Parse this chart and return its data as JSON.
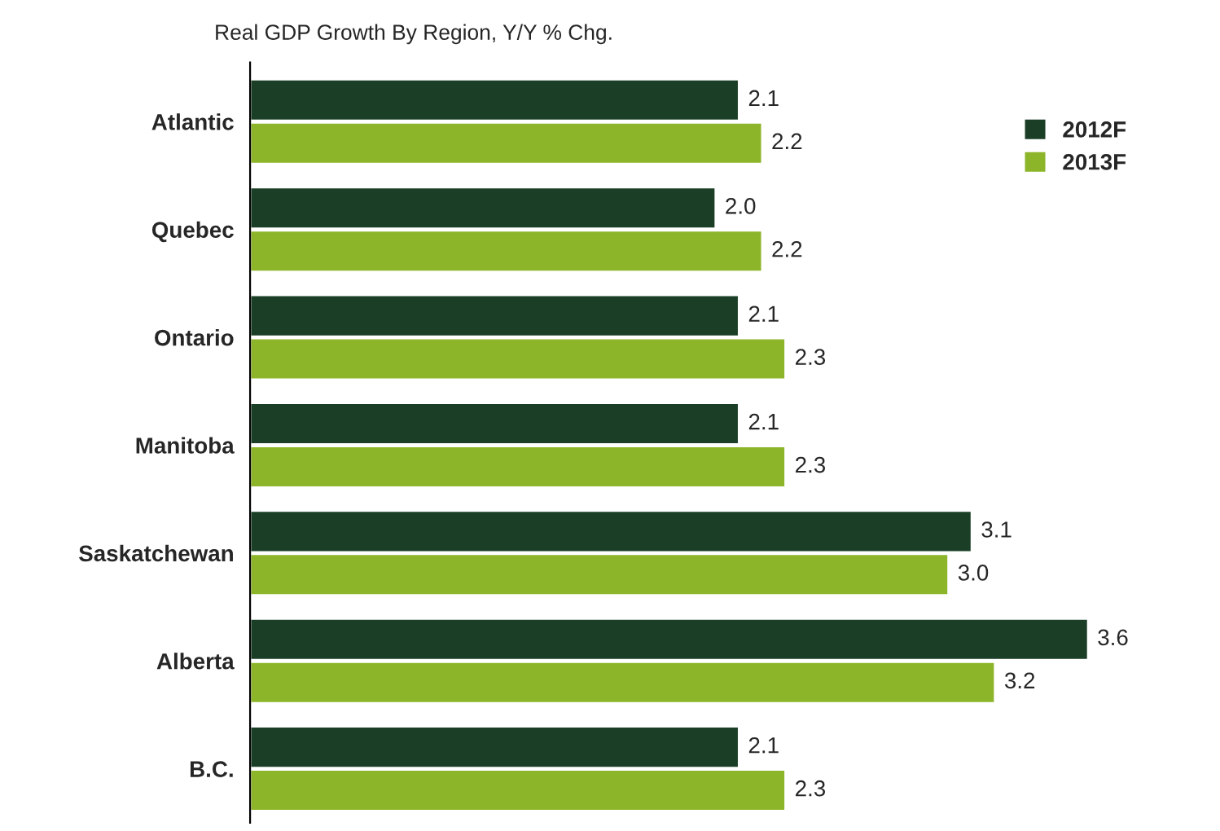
{
  "chart_data": {
    "type": "bar",
    "orientation": "horizontal",
    "title": "Real GDP Growth By Region, Y/Y % Chg.",
    "categories": [
      "Atlantic",
      "Quebec",
      "Ontario",
      "Manitoba",
      "Saskatchewan",
      "Alberta",
      "B.C."
    ],
    "series": [
      {
        "name": "2012F",
        "color": "#1a3f26",
        "values": [
          2.1,
          2.0,
          2.1,
          2.1,
          3.1,
          3.6,
          2.1
        ],
        "value_labels": [
          "2.1",
          "2.0",
          "2.1",
          "2.1",
          "3.1",
          "3.6",
          "2.1"
        ]
      },
      {
        "name": "2013F",
        "color": "#8db52a",
        "values": [
          2.2,
          2.2,
          2.3,
          2.3,
          3.0,
          3.2,
          2.3
        ],
        "value_labels": [
          "2.2",
          "2.2",
          "2.3",
          "2.3",
          "3.0",
          "3.2",
          "2.3"
        ]
      }
    ],
    "legend": "top right",
    "grid": false,
    "tick_labels": "y"
  }
}
